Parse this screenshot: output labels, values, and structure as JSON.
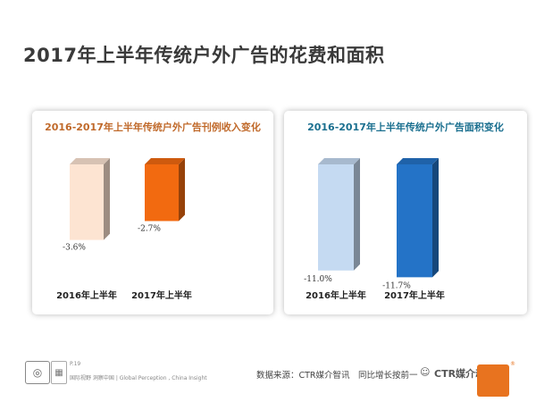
{
  "page": {
    "title": "2017年上半年传统户外广告的花费和面积",
    "page_number": "P.19",
    "tagline": "国际视野 洞察中国 | Global Perception , China Insight",
    "source": "数据来源：CTR媒介智讯　同比增长按前一",
    "watermark": "CTR媒介动量",
    "watermark_icon": "wechat-bubble-icon",
    "brand_color": "#e8731f"
  },
  "chart_data": [
    {
      "type": "bar",
      "title": "2016-2017年上半年传统户外广告刊例收入变化",
      "title_color": "#c0692a",
      "categories": [
        "2016年上半年",
        "2017年上半年"
      ],
      "values": [
        -3.6,
        -2.7
      ],
      "data_labels": [
        "-3.6%",
        "-2.7%"
      ],
      "colors": [
        "#fde4d2",
        "#f26a10"
      ],
      "ylim": [
        -4.5,
        0
      ]
    },
    {
      "type": "bar",
      "title": "2016-2017年上半年传统户外广告面积变化",
      "title_color": "#1a6f8f",
      "categories": [
        "2016年上半年",
        "2017年上半年"
      ],
      "values": [
        -11.0,
        -11.7
      ],
      "data_labels": [
        "-11.0%",
        "-11.7%"
      ],
      "colors": [
        "#c5daf2",
        "#2473c7"
      ],
      "ylim": [
        -13.5,
        0
      ]
    }
  ]
}
